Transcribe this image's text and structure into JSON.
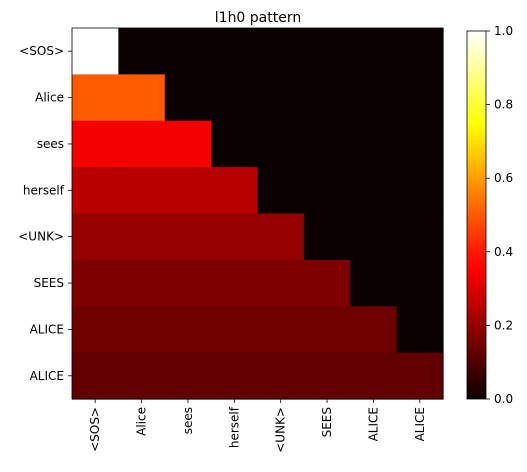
{
  "chart_data": {
    "type": "heatmap",
    "title": "l1h0 pattern",
    "xlabel": "",
    "ylabel": "",
    "x_categories": [
      "<SOS>",
      "Alice",
      "sees",
      "herself",
      "<UNK>",
      "SEES",
      "ALICE",
      "ALICE"
    ],
    "y_categories": [
      "<SOS>",
      "Alice",
      "sees",
      "herself",
      "<UNK>",
      "SEES",
      "ALICE",
      "ALICE"
    ],
    "values": [
      [
        1.0,
        0,
        0,
        0,
        0,
        0,
        0,
        0
      ],
      [
        0.5,
        0.5,
        0,
        0,
        0,
        0,
        0,
        0
      ],
      [
        0.333,
        0.333,
        0.333,
        0,
        0,
        0,
        0,
        0
      ],
      [
        0.25,
        0.25,
        0.25,
        0.25,
        0,
        0,
        0,
        0
      ],
      [
        0.2,
        0.2,
        0.2,
        0.2,
        0.2,
        0,
        0,
        0
      ],
      [
        0.167,
        0.167,
        0.167,
        0.167,
        0.167,
        0.167,
        0,
        0
      ],
      [
        0.143,
        0.143,
        0.143,
        0.143,
        0.143,
        0.143,
        0.143,
        0
      ],
      [
        0.125,
        0.125,
        0.125,
        0.125,
        0.125,
        0.125,
        0.125,
        0.125
      ]
    ],
    "colormap": "hot",
    "vmin": 0.0,
    "vmax": 1.0,
    "colorbar_ticks": [
      "0.0",
      "0.2",
      "0.4",
      "0.6",
      "0.8",
      "1.0"
    ],
    "colorbar_tick_values": [
      0.0,
      0.2,
      0.4,
      0.6,
      0.8,
      1.0
    ],
    "grid": false
  }
}
